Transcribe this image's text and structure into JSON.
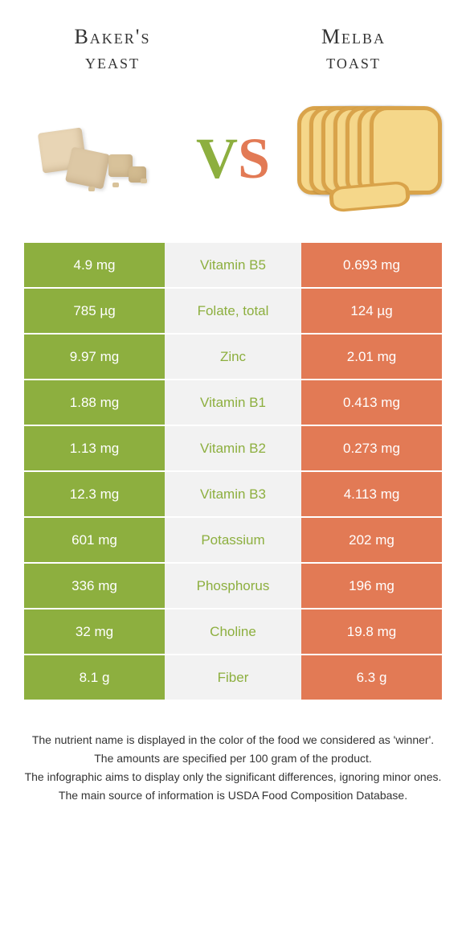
{
  "header": {
    "left_line1": "Baker's",
    "left_line2": "yeast",
    "right_line1": "Melba",
    "right_line2": "toast"
  },
  "vs": {
    "v": "V",
    "s": "S"
  },
  "colors": {
    "green": "#8daf3f",
    "orange": "#e27a55",
    "mid_bg": "#f2f2f2",
    "nutrient_green": "#8daf3f",
    "nutrient_orange": "#e27a55"
  },
  "rows": [
    {
      "left": "4.9 mg",
      "mid": "Vitamin B5",
      "right": "0.693 mg",
      "mid_color": "green"
    },
    {
      "left": "785 µg",
      "mid": "Folate, total",
      "right": "124 µg",
      "mid_color": "green"
    },
    {
      "left": "9.97 mg",
      "mid": "Zinc",
      "right": "2.01 mg",
      "mid_color": "green"
    },
    {
      "left": "1.88 mg",
      "mid": "Vitamin B1",
      "right": "0.413 mg",
      "mid_color": "green"
    },
    {
      "left": "1.13 mg",
      "mid": "Vitamin B2",
      "right": "0.273 mg",
      "mid_color": "green"
    },
    {
      "left": "12.3 mg",
      "mid": "Vitamin B3",
      "right": "4.113 mg",
      "mid_color": "green"
    },
    {
      "left": "601 mg",
      "mid": "Potassium",
      "right": "202 mg",
      "mid_color": "green"
    },
    {
      "left": "336 mg",
      "mid": "Phosphorus",
      "right": "196 mg",
      "mid_color": "green"
    },
    {
      "left": "32 mg",
      "mid": "Choline",
      "right": "19.8 mg",
      "mid_color": "green"
    },
    {
      "left": "8.1 g",
      "mid": "Fiber",
      "right": "6.3 g",
      "mid_color": "green"
    }
  ],
  "footer": {
    "l1": "The nutrient name is displayed in the color of the food we considered as 'winner'.",
    "l2": "The amounts are specified per 100 gram of the product.",
    "l3": "The infographic aims to display only the significant differences, ignoring minor ones.",
    "l4": "The main source of information is USDA Food Composition Database."
  }
}
